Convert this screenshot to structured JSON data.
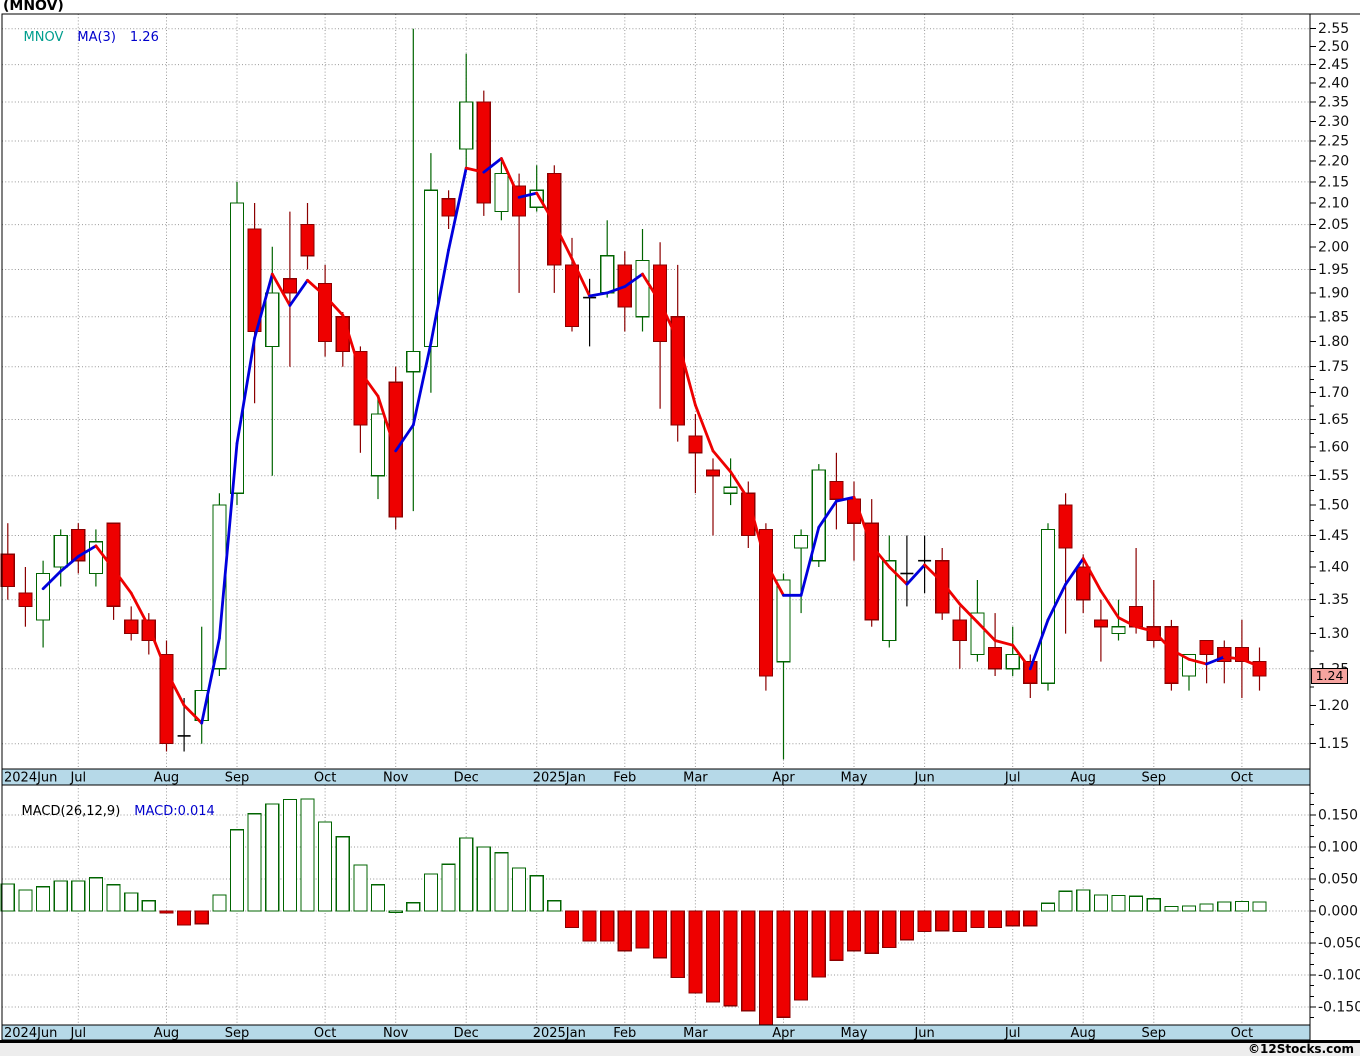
{
  "title": "(MNOV)",
  "main_legend": {
    "symbol": "MNOV",
    "ma": "MA(3)",
    "ma_value": "1.26"
  },
  "macd_legend": {
    "name": "MACD(26,12,9)",
    "value": "MACD:0.014"
  },
  "price_tag": "1.24",
  "footer": "©12Stocks.com",
  "colors": {
    "symbol_text": "#009e8e",
    "blue_text": "#0000cc",
    "up": "#006400",
    "down_fill": "#ee0000",
    "down_border": "#8b0000",
    "doji": "#000000",
    "ma_up": "#0000dd",
    "ma_down": "#ee0000",
    "band_bg": "#b6d9e8",
    "grid": "#999999",
    "axis_text": "#111111",
    "tag_bg": "#f5a39f",
    "footer_bg": "#ededed",
    "border": "#000000"
  },
  "chart_data": [
    {
      "type": "candlestick",
      "title": "MNOV weekly candlestick chart with MA(3)",
      "y_axis": {
        "scale": "log",
        "min": 1.118,
        "max": 2.592,
        "tick_step": 0.05,
        "grid_step": 0.1,
        "side": "right"
      },
      "y_ticks": [
        2.55,
        2.5,
        2.45,
        2.4,
        2.35,
        2.3,
        2.25,
        2.2,
        2.15,
        2.1,
        2.05,
        2.0,
        1.95,
        1.9,
        1.85,
        1.8,
        1.75,
        1.7,
        1.65,
        1.6,
        1.55,
        1.5,
        1.45,
        1.4,
        1.35,
        1.3,
        1.25,
        1.2,
        1.15
      ],
      "y_gridlines": [
        2.55,
        2.45,
        2.35,
        2.25,
        2.15,
        2.05,
        1.95,
        1.85,
        1.75,
        1.65,
        1.55,
        1.45,
        1.35,
        1.25,
        1.15
      ],
      "x_months": [
        {
          "label": "2024Jun",
          "week": 0
        },
        {
          "label": "Jul",
          "week": 4
        },
        {
          "label": "Aug",
          "week": 9
        },
        {
          "label": "Sep",
          "week": 13
        },
        {
          "label": "Oct",
          "week": 18
        },
        {
          "label": "Nov",
          "week": 22
        },
        {
          "label": "Dec",
          "week": 26
        },
        {
          "label": "2025Jan",
          "week": 30
        },
        {
          "label": "Feb",
          "week": 35
        },
        {
          "label": "Mar",
          "week": 39
        },
        {
          "label": "Apr",
          "week": 44
        },
        {
          "label": "May",
          "week": 48
        },
        {
          "label": "Jun",
          "week": 52
        },
        {
          "label": "Jul",
          "week": 57
        },
        {
          "label": "Aug",
          "week": 61
        },
        {
          "label": "Sep",
          "week": 65
        },
        {
          "label": "Oct",
          "week": 70
        }
      ],
      "ma_period": 3,
      "last_price": 1.24,
      "candles_ohlc": [
        [
          1.42,
          1.47,
          1.35,
          1.37
        ],
        [
          1.36,
          1.4,
          1.31,
          1.34
        ],
        [
          1.32,
          1.41,
          1.28,
          1.39
        ],
        [
          1.4,
          1.46,
          1.37,
          1.45
        ],
        [
          1.46,
          1.47,
          1.39,
          1.41
        ],
        [
          1.39,
          1.46,
          1.37,
          1.44
        ],
        [
          1.47,
          1.47,
          1.32,
          1.34
        ],
        [
          1.32,
          1.34,
          1.29,
          1.3
        ],
        [
          1.32,
          1.33,
          1.27,
          1.29
        ],
        [
          1.27,
          1.29,
          1.14,
          1.15
        ],
        [
          1.16,
          1.21,
          1.14,
          1.16
        ],
        [
          1.18,
          1.31,
          1.15,
          1.22
        ],
        [
          1.25,
          1.52,
          1.24,
          1.5
        ],
        [
          1.52,
          2.15,
          1.5,
          2.1
        ],
        [
          2.04,
          2.1,
          1.68,
          1.82
        ],
        [
          1.79,
          2.0,
          1.55,
          1.9
        ],
        [
          1.93,
          2.08,
          1.75,
          1.9
        ],
        [
          2.05,
          2.1,
          1.95,
          1.98
        ],
        [
          1.92,
          1.96,
          1.77,
          1.8
        ],
        [
          1.85,
          1.86,
          1.75,
          1.78
        ],
        [
          1.78,
          1.79,
          1.59,
          1.64
        ],
        [
          1.55,
          1.69,
          1.51,
          1.66
        ],
        [
          1.72,
          1.75,
          1.46,
          1.48
        ],
        [
          1.74,
          2.55,
          1.49,
          1.78
        ],
        [
          1.79,
          2.22,
          1.7,
          2.13
        ],
        [
          2.11,
          2.13,
          2.04,
          2.07
        ],
        [
          2.23,
          2.48,
          2.18,
          2.35
        ],
        [
          2.35,
          2.38,
          2.07,
          2.1
        ],
        [
          2.08,
          2.2,
          2.06,
          2.17
        ],
        [
          2.14,
          2.17,
          1.9,
          2.07
        ],
        [
          2.09,
          2.19,
          2.08,
          2.13
        ],
        [
          2.17,
          2.19,
          1.9,
          1.96
        ],
        [
          1.96,
          2.02,
          1.82,
          1.83
        ],
        [
          1.89,
          1.93,
          1.79,
          1.89
        ],
        [
          1.9,
          2.06,
          1.89,
          1.98
        ],
        [
          1.96,
          1.99,
          1.82,
          1.87
        ],
        [
          1.85,
          2.04,
          1.82,
          1.97
        ],
        [
          1.96,
          2.01,
          1.67,
          1.8
        ],
        [
          1.85,
          1.96,
          1.61,
          1.64
        ],
        [
          1.62,
          1.66,
          1.52,
          1.59
        ],
        [
          1.56,
          1.58,
          1.45,
          1.55
        ],
        [
          1.52,
          1.58,
          1.5,
          1.53
        ],
        [
          1.52,
          1.54,
          1.43,
          1.45
        ],
        [
          1.46,
          1.47,
          1.22,
          1.24
        ],
        [
          1.26,
          1.39,
          1.13,
          1.38
        ],
        [
          1.43,
          1.46,
          1.33,
          1.45
        ],
        [
          1.41,
          1.57,
          1.4,
          1.56
        ],
        [
          1.54,
          1.59,
          1.46,
          1.51
        ],
        [
          1.51,
          1.54,
          1.41,
          1.47
        ],
        [
          1.47,
          1.51,
          1.31,
          1.32
        ],
        [
          1.29,
          1.45,
          1.28,
          1.41
        ],
        [
          1.39,
          1.45,
          1.34,
          1.39
        ],
        [
          1.41,
          1.45,
          1.36,
          1.41
        ],
        [
          1.41,
          1.43,
          1.32,
          1.33
        ],
        [
          1.32,
          1.34,
          1.25,
          1.29
        ],
        [
          1.27,
          1.38,
          1.26,
          1.33
        ],
        [
          1.28,
          1.33,
          1.24,
          1.25
        ],
        [
          1.25,
          1.31,
          1.24,
          1.27
        ],
        [
          1.26,
          1.27,
          1.21,
          1.23
        ],
        [
          1.23,
          1.47,
          1.22,
          1.46
        ],
        [
          1.5,
          1.52,
          1.3,
          1.43
        ],
        [
          1.4,
          1.42,
          1.33,
          1.35
        ],
        [
          1.32,
          1.35,
          1.26,
          1.31
        ],
        [
          1.3,
          1.35,
          1.29,
          1.31
        ],
        [
          1.34,
          1.43,
          1.3,
          1.31
        ],
        [
          1.31,
          1.38,
          1.28,
          1.29
        ],
        [
          1.31,
          1.32,
          1.22,
          1.23
        ],
        [
          1.24,
          1.27,
          1.22,
          1.27
        ],
        [
          1.29,
          1.29,
          1.23,
          1.27
        ],
        [
          1.28,
          1.29,
          1.23,
          1.26
        ],
        [
          1.28,
          1.32,
          1.21,
          1.26
        ],
        [
          1.26,
          1.28,
          1.22,
          1.24
        ]
      ]
    },
    {
      "type": "bar",
      "title": "MACD(26,12,9) histogram",
      "y_axis": {
        "scale": "linear",
        "min": -0.181,
        "max": 0.194,
        "tick_step": 0.05,
        "side": "right"
      },
      "y_ticks": [
        0.15,
        0.1,
        0.05,
        0.0,
        -0.05,
        -0.1,
        -0.15
      ],
      "values": [
        0.042,
        0.033,
        0.038,
        0.047,
        0.047,
        0.052,
        0.041,
        0.028,
        0.016,
        -0.003,
        -0.022,
        -0.02,
        0.025,
        0.127,
        0.152,
        0.167,
        0.174,
        0.175,
        0.139,
        0.116,
        0.072,
        0.041,
        0.0,
        0.013,
        0.058,
        0.073,
        0.114,
        0.1,
        0.091,
        0.067,
        0.055,
        0.016,
        -0.026,
        -0.047,
        -0.047,
        -0.062,
        -0.058,
        -0.073,
        -0.104,
        -0.128,
        -0.142,
        -0.148,
        -0.156,
        -0.178,
        -0.166,
        -0.139,
        -0.103,
        -0.077,
        -0.062,
        -0.066,
        -0.057,
        -0.045,
        -0.032,
        -0.031,
        -0.032,
        -0.026,
        -0.026,
        -0.023,
        -0.023,
        0.012,
        0.031,
        0.033,
        0.025,
        0.024,
        0.023,
        0.019,
        0.007,
        0.008,
        0.011,
        0.014,
        0.015,
        0.014
      ]
    }
  ]
}
